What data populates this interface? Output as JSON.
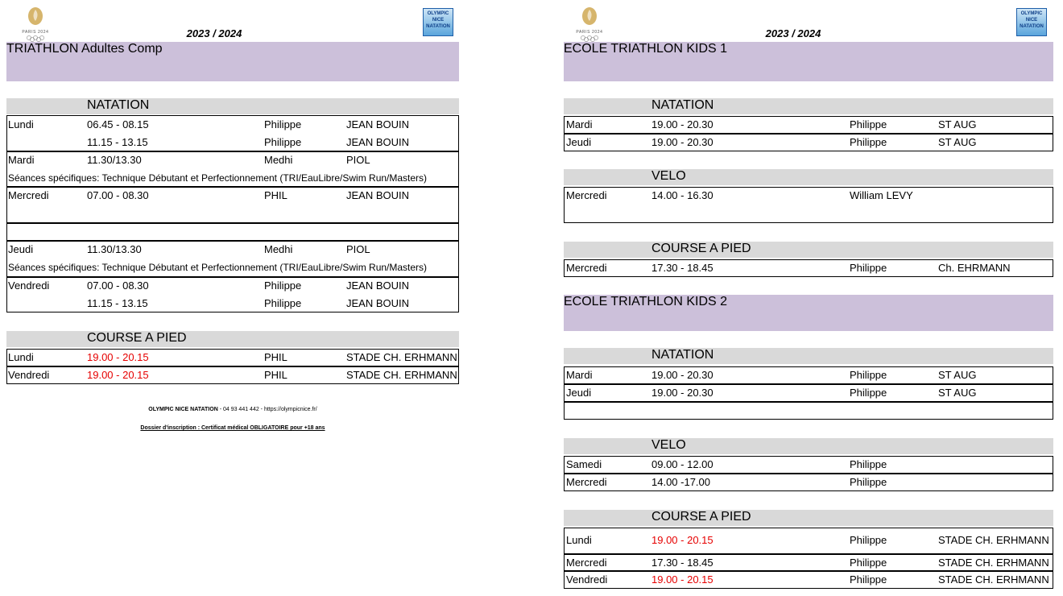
{
  "left": {
    "logo_paris": "PARIS 2024",
    "logo_club": "OLYMPIC NICE NATATION",
    "season": "2023 / 2024",
    "title": "TRIATHLON Adultes Comp",
    "sections": [
      {
        "name": "NATATION",
        "rows": [
          {
            "day": "Lundi",
            "time": "06.45 - 08.15",
            "coach": "Philippe",
            "place": "JEAN BOUIN"
          },
          {
            "time": "11.15 - 13.15",
            "coach": "Philippe",
            "place": "JEAN BOUIN"
          },
          {
            "day": "Mardi",
            "time": "11.30/13.30",
            "coach": "Medhi",
            "place": "PIOL"
          },
          {
            "note": "Séances spécifiques: Technique Débutant et Perfectionnement  (TRI/EauLibre/Swim Run/Masters)"
          },
          {
            "day": "Mercredi",
            "time": "07.00 - 08.30",
            "coach": "PHIL",
            "place": "JEAN BOUIN"
          },
          {
            "day": "Jeudi",
            "time": "11.30/13.30",
            "coach": "Medhi",
            "place": "PIOL"
          },
          {
            "note": "Séances spécifiques: Technique Débutant et Perfectionnement  (TRI/EauLibre/Swim Run/Masters)"
          },
          {
            "day": "Vendredi",
            "time": "07.00 - 08.30",
            "coach": "Philippe",
            "place": "JEAN BOUIN"
          },
          {
            "time": "11.15 - 13.15",
            "coach": "Philippe",
            "place": "JEAN BOUIN"
          }
        ]
      },
      {
        "name": "COURSE A PIED",
        "rows": [
          {
            "day": "Lundi",
            "time": "19.00 - 20.15",
            "color": "#e60000",
            "coach": "PHIL",
            "place": "STADE CH. ERHMANN"
          },
          {
            "day": "Vendredi",
            "time": "19.00 - 20.15",
            "color": "#e60000",
            "coach": "PHIL",
            "place": "STADE CH. ERHMANN"
          }
        ]
      }
    ],
    "footer": {
      "club": "OLYMPIC NICE NATATION",
      "contact": " - 04 93 441 442 - https://olympicnice.fr/",
      "notice": "Dossier d'inscription : Certificat médical OBLIGATOIRE pour +18 ans"
    }
  },
  "right": {
    "logo_paris": "PARIS 2024",
    "logo_club": "OLYMPIC NICE NATATION",
    "season": "2023 / 2024",
    "groups": [
      {
        "title": "ECOLE TRIATHLON KIDS 1",
        "sections": [
          {
            "name": "NATATION",
            "rows": [
              {
                "day": "Mardi",
                "time": "19.00 - 20.30",
                "coach": "Philippe",
                "place": "ST AUG"
              },
              {
                "day": "Jeudi",
                "time": "19.00 - 20.30",
                "coach": "Philippe",
                "place": "ST AUG"
              }
            ]
          },
          {
            "name": "VELO",
            "rows": [
              {
                "day": "Mercredi",
                "time": "14.00 - 16.30",
                "coach": "William LEVY"
              }
            ]
          },
          {
            "name": "COURSE A PIED",
            "rows": [
              {
                "day": "Mercredi",
                "time": "17.30 - 18.45",
                "coach": "Philippe",
                "place": "Ch. EHRMANN"
              }
            ]
          }
        ]
      },
      {
        "title": "ECOLE TRIATHLON KIDS 2",
        "sections": [
          {
            "name": "NATATION",
            "rows": [
              {
                "day": "Mardi",
                "time": "19.00 - 20.30",
                "coach": "Philippe",
                "place": "ST AUG"
              },
              {
                "day": "Jeudi",
                "time": "19.00 - 20.30",
                "coach": "Philippe",
                "place": "ST AUG"
              }
            ]
          },
          {
            "name": "VELO",
            "rows": [
              {
                "day": "Samedi",
                "time": "09.00  - 12.00",
                "coach": "Philippe"
              },
              {
                "day": "Mercredi",
                "time": "14.00 -17.00",
                "coach": "Philippe"
              }
            ]
          },
          {
            "name": "COURSE A PIED",
            "rows": [
              {
                "day": "Lundi",
                "time": "19.00 - 20.15",
                "color": "#e60000",
                "coach": "Philippe",
                "place": "STADE CH. ERHMANN"
              },
              {
                "day": "Mercredi",
                "time": "17.30 - 18.45",
                "coach": "Philippe",
                "place": "STADE CH. ERHMANN"
              },
              {
                "day": "Vendredi",
                "time": "19.00 - 20.15",
                "color": "#e60000",
                "coach": "Philippe",
                "place": "STADE CH. ERHMANN"
              }
            ]
          }
        ]
      }
    ]
  }
}
